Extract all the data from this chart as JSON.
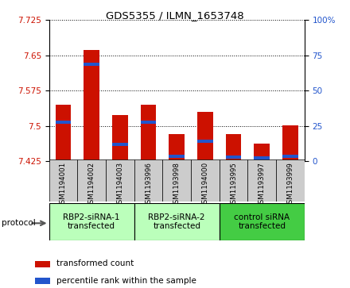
{
  "title": "GDS5355 / ILMN_1653748",
  "samples": [
    "GSM1194001",
    "GSM1194002",
    "GSM1194003",
    "GSM1193996",
    "GSM1193998",
    "GSM1194000",
    "GSM1193995",
    "GSM1193997",
    "GSM1193999"
  ],
  "red_values": [
    7.546,
    7.662,
    7.524,
    7.546,
    7.482,
    7.53,
    7.482,
    7.462,
    7.502
  ],
  "blue_values": [
    7.505,
    7.628,
    7.458,
    7.505,
    7.432,
    7.464,
    7.43,
    7.428,
    7.432
  ],
  "blue_thickness": 0.007,
  "y_min": 7.425,
  "y_max": 7.725,
  "y_ticks": [
    7.425,
    7.5,
    7.575,
    7.65,
    7.725
  ],
  "y2_ticks": [
    0,
    25,
    50,
    75,
    100
  ],
  "red_color": "#cc1100",
  "blue_color": "#2255cc",
  "bar_width": 0.55,
  "group_labels": [
    "RBP2-siRNA-1\ntransfected",
    "RBP2-siRNA-2\ntransfected",
    "control siRNA\ntransfected"
  ],
  "group_ranges": [
    [
      0,
      3
    ],
    [
      3,
      6
    ],
    [
      6,
      9
    ]
  ],
  "group_colors": [
    "#bbffbb",
    "#bbffbb",
    "#44cc44"
  ],
  "group_light_color": "#bbffbb",
  "group_dark_color": "#44cc44",
  "sample_bg_color": "#cccccc",
  "legend_red": "transformed count",
  "legend_blue": "percentile rank within the sample",
  "protocol_label": "protocol"
}
